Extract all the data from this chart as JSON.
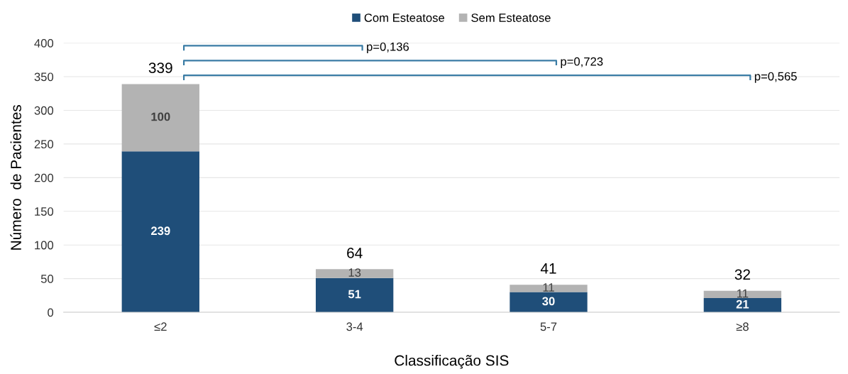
{
  "chart_data": {
    "type": "bar",
    "stacked": true,
    "xlabel": "Classificação SIS",
    "ylabel": "Número  de Pacientes",
    "categories": [
      "≤2",
      "3-4",
      "5-7",
      "≥8"
    ],
    "series": [
      {
        "name": "Com Esteatose",
        "color": "#1f4e79",
        "values": [
          239,
          51,
          30,
          21
        ]
      },
      {
        "name": "Sem Esteatose",
        "color": "#b3b3b3",
        "values": [
          100,
          13,
          11,
          11
        ]
      }
    ],
    "totals": [
      "339",
      "64",
      "41",
      "32"
    ],
    "data_labels": true,
    "ylim": [
      0,
      400
    ],
    "yticks": [
      0,
      50,
      100,
      150,
      200,
      250,
      300,
      350,
      400
    ],
    "grid": "y",
    "legend": "top",
    "annotations": [
      "p=0,136",
      "p=0,723",
      "p=0,565"
    ]
  }
}
